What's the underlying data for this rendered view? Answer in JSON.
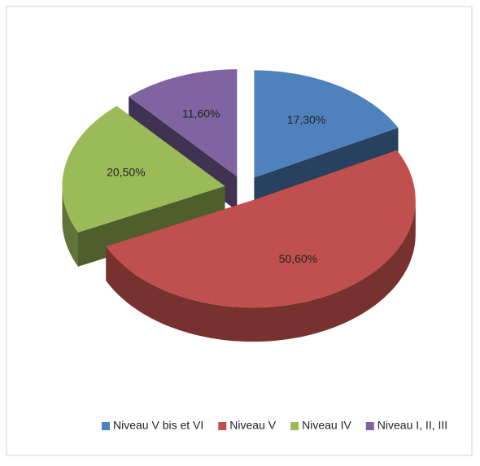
{
  "chart_data": {
    "type": "pie",
    "categories": [
      "Niveau V bis et VI",
      "Niveau V",
      "Niveau IV",
      "Niveau I, II, III"
    ],
    "values": [
      17.3,
      50.6,
      20.5,
      11.6
    ],
    "value_labels": [
      "17,30%",
      "50,60%",
      "20,50%",
      "11,60%"
    ],
    "colors": [
      "#4f81bd",
      "#c0504d",
      "#9bbb59",
      "#8064a2"
    ],
    "legend": "bottom"
  }
}
